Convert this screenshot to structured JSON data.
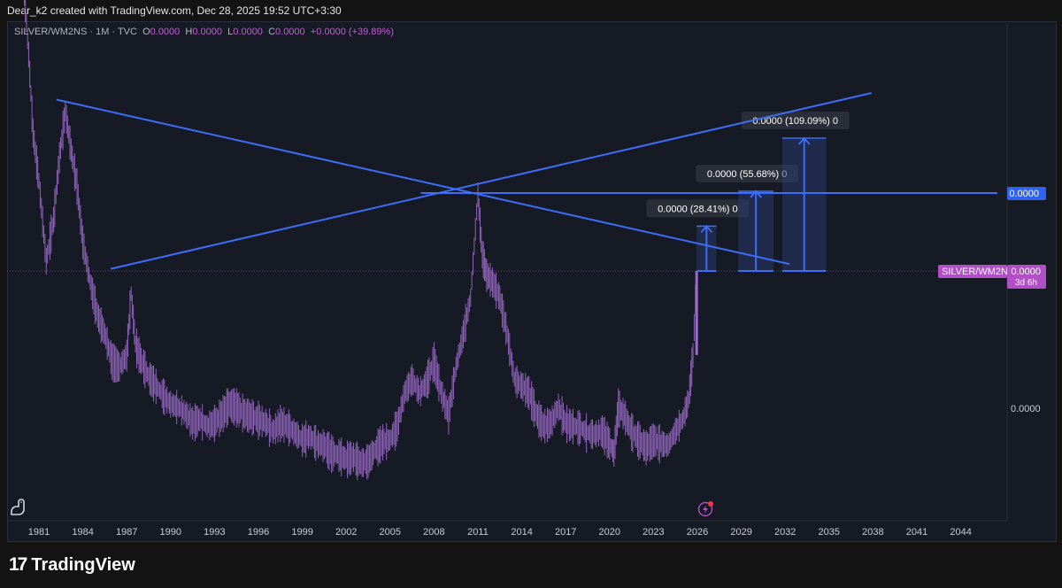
{
  "header": {
    "byline": "Dear_k2 created with TradingView.com, Dec 28, 2025 19:52 UTC+3:30"
  },
  "legend": {
    "symbol": "SILVER/WM2NS · 1M · TVC",
    "o_label": "O",
    "o_value": "0.0000",
    "h_label": "H",
    "h_value": "0.0000",
    "l_label": "L",
    "l_value": "0.0000",
    "c_label": "C",
    "c_value": "0.0000",
    "change": "+0.0000 (+39.89%)"
  },
  "price_axis": {
    "horizontal_line_label": "0.0000",
    "symbol_tag": "SILVER/WM2NS",
    "symbol_price": "0.0000",
    "countdown": "3d 6h",
    "lower_label": "0.0000"
  },
  "footer": {
    "brand": "TradingView"
  },
  "colors": {
    "background": "#161a25",
    "candles": "#9c6bc9",
    "trendline": "#3d6cf5",
    "measure_fill": "#2a3a6e",
    "symbol_tag": "#b04fc6",
    "hline_tag": "#2f62f0"
  },
  "icons": [
    "dino-icon",
    "lightning-icon"
  ],
  "chart_data": {
    "type": "line",
    "title": "SILVER/WM2NS",
    "timeframe": "1M",
    "x_ticks": [
      "1981",
      "1984",
      "1987",
      "1990",
      "1993",
      "1996",
      "1999",
      "2002",
      "2005",
      "2008",
      "2011",
      "2014",
      "2017",
      "2020",
      "2023",
      "2026",
      "2029",
      "2032",
      "2035",
      "2038",
      "2041",
      "2044"
    ],
    "x_range": [
      1980,
      2046.5
    ],
    "y_scale": "log",
    "y_range": [
      0.6,
      12.5
    ],
    "series": [
      {
        "name": "SILVER/WM2NS",
        "x": [
          1980.0,
          1980.3,
          1980.6,
          1981.0,
          1981.5,
          1982.0,
          1982.4,
          1982.8,
          1983.2,
          1983.6,
          1984.0,
          1984.5,
          1985.0,
          1985.5,
          1986.0,
          1986.5,
          1987.0,
          1987.3,
          1987.6,
          1988.0,
          1988.5,
          1989.0,
          1989.5,
          1990.0,
          1990.5,
          1991.0,
          1991.5,
          1992.0,
          1992.5,
          1993.0,
          1993.5,
          1994.0,
          1994.5,
          1995.0,
          1995.5,
          1996.0,
          1996.5,
          1997.0,
          1997.5,
          1998.0,
          1998.5,
          1999.0,
          1999.5,
          2000.0,
          2000.5,
          2001.0,
          2001.5,
          2002.0,
          2002.5,
          2003.0,
          2003.5,
          2004.0,
          2004.5,
          2005.0,
          2005.5,
          2006.0,
          2006.5,
          2007.0,
          2007.5,
          2008.0,
          2008.5,
          2009.0,
          2009.5,
          2010.0,
          2010.5,
          2011.0,
          2011.3,
          2011.6,
          2012.0,
          2012.5,
          2013.0,
          2013.5,
          2014.0,
          2014.5,
          2015.0,
          2015.5,
          2016.0,
          2016.5,
          2017.0,
          2017.5,
          2018.0,
          2018.5,
          2019.0,
          2019.5,
          2020.0,
          2020.3,
          2020.6,
          2021.0,
          2021.5,
          2022.0,
          2022.5,
          2023.0,
          2023.5,
          2024.0,
          2024.5,
          2025.0,
          2025.4,
          2025.7,
          2025.95
        ],
        "y": [
          12.0,
          8.5,
          5.5,
          4.2,
          2.7,
          3.4,
          4.8,
          6.2,
          5.0,
          4.1,
          3.0,
          2.4,
          2.0,
          1.8,
          1.55,
          1.5,
          1.6,
          2.25,
          1.7,
          1.55,
          1.42,
          1.35,
          1.28,
          1.22,
          1.2,
          1.16,
          1.1,
          1.12,
          1.08,
          1.1,
          1.15,
          1.22,
          1.2,
          1.16,
          1.14,
          1.12,
          1.1,
          1.05,
          1.1,
          1.08,
          1.04,
          1.0,
          1.02,
          0.98,
          0.97,
          0.93,
          0.92,
          0.9,
          0.91,
          0.88,
          0.89,
          0.95,
          0.99,
          1.0,
          1.08,
          1.3,
          1.4,
          1.3,
          1.38,
          1.55,
          1.3,
          1.15,
          1.5,
          1.8,
          2.2,
          3.9,
          2.8,
          2.5,
          2.4,
          2.2,
          1.8,
          1.4,
          1.35,
          1.3,
          1.15,
          1.08,
          1.1,
          1.2,
          1.1,
          1.08,
          1.07,
          1.04,
          1.03,
          1.05,
          0.98,
          0.93,
          1.2,
          1.15,
          1.05,
          1.0,
          0.96,
          1.0,
          0.98,
          0.97,
          1.05,
          1.12,
          1.25,
          1.6,
          2.55
        ]
      }
    ],
    "trendlines": [
      {
        "name": "descending-resistance",
        "x": [
          1982.2,
          2032.3
        ],
        "y": [
          6.6,
          2.65
        ]
      },
      {
        "name": "ascending-support",
        "x": [
          1985.9,
          2037.9
        ],
        "y": [
          2.58,
          6.85
        ]
      },
      {
        "name": "horizontal-level",
        "x": [
          2007.1,
          2046.5
        ],
        "y": [
          3.93,
          3.93
        ]
      }
    ],
    "measurements": [
      {
        "label": "0.0000 (28.41%) 0",
        "percent": 28.41,
        "x": [
          2025.95,
          2027.3
        ],
        "y_from": 2.55,
        "y_to": 3.27
      },
      {
        "label": "0.0000 (55.68%) 0",
        "percent": 55.68,
        "x": [
          2028.8,
          2031.2
        ],
        "y_from": 2.55,
        "y_to": 3.97
      },
      {
        "label": "0.0000 (109.09%) 0",
        "percent": 109.09,
        "x": [
          2031.8,
          2034.8
        ],
        "y_from": 2.55,
        "y_to": 5.33
      }
    ]
  }
}
